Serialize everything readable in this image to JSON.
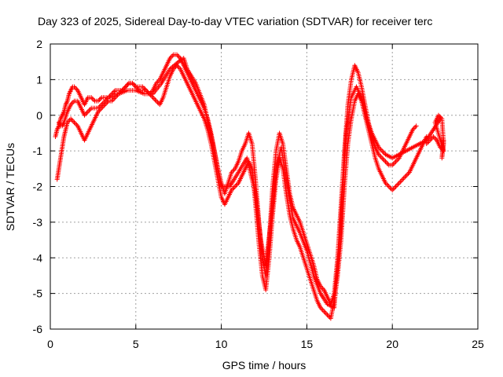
{
  "chart_data": {
    "type": "scatter",
    "title": "Day 323 of 2025, Sidereal Day-to-day VTEC variation (SDTVAR) for receiver terc",
    "xlabel": "GPS time / hours",
    "ylabel": "SDTVAR / TECUs",
    "xlim": [
      0,
      25
    ],
    "ylim": [
      -6,
      2
    ],
    "xticks": [
      0,
      5,
      10,
      15,
      20,
      25
    ],
    "yticks": [
      -6,
      -5,
      -4,
      -3,
      -2,
      -1,
      0,
      1,
      2
    ],
    "grid": true,
    "marker": "+",
    "color": "#ff0000",
    "series": [
      {
        "values": [
          [
            0.3,
            -0.6
          ],
          [
            0.4,
            -0.4
          ],
          [
            0.5,
            -0.3
          ],
          [
            0.6,
            -0.1
          ],
          [
            0.7,
            0.0
          ],
          [
            0.8,
            0.1
          ],
          [
            0.9,
            0.3
          ],
          [
            1.0,
            0.4
          ],
          [
            1.1,
            0.6
          ],
          [
            1.2,
            0.7
          ],
          [
            1.3,
            0.8
          ],
          [
            1.4,
            0.8
          ],
          [
            1.6,
            0.7
          ],
          [
            1.8,
            0.5
          ],
          [
            2.0,
            0.3
          ],
          [
            2.2,
            0.5
          ],
          [
            2.4,
            0.5
          ],
          [
            2.6,
            0.4
          ],
          [
            2.8,
            0.4
          ],
          [
            3.0,
            0.5
          ],
          [
            3.2,
            0.5
          ],
          [
            3.4,
            0.5
          ],
          [
            3.6,
            0.6
          ],
          [
            3.8,
            0.7
          ],
          [
            4.0,
            0.7
          ],
          [
            4.2,
            0.7
          ],
          [
            4.4,
            0.8
          ],
          [
            4.6,
            0.9
          ],
          [
            4.8,
            0.9
          ],
          [
            5.0,
            0.8
          ],
          [
            5.2,
            0.7
          ],
          [
            5.4,
            0.7
          ],
          [
            5.6,
            0.7
          ],
          [
            5.8,
            0.6
          ],
          [
            6.0,
            0.7
          ],
          [
            6.2,
            0.9
          ],
          [
            6.4,
            1.0
          ],
          [
            6.6,
            1.2
          ],
          [
            6.8,
            1.4
          ],
          [
            7.0,
            1.6
          ],
          [
            7.2,
            1.7
          ],
          [
            7.4,
            1.7
          ],
          [
            7.6,
            1.6
          ],
          [
            7.8,
            1.4
          ],
          [
            8.0,
            1.2
          ],
          [
            8.2,
            1.0
          ],
          [
            8.4,
            0.8
          ],
          [
            8.6,
            0.6
          ],
          [
            8.8,
            0.4
          ],
          [
            9.0,
            0.2
          ],
          [
            9.2,
            -0.1
          ],
          [
            9.4,
            -0.5
          ],
          [
            9.6,
            -1.0
          ],
          [
            9.8,
            -1.5
          ],
          [
            10.0,
            -1.9
          ],
          [
            10.2,
            -2.2
          ],
          [
            10.4,
            -1.9
          ],
          [
            10.6,
            -1.6
          ],
          [
            10.8,
            -1.5
          ],
          [
            11.0,
            -1.3
          ],
          [
            11.2,
            -1.0
          ],
          [
            11.4,
            -0.8
          ],
          [
            11.6,
            -0.5
          ],
          [
            11.8,
            -0.8
          ],
          [
            12.0,
            -1.8
          ],
          [
            12.2,
            -3.0
          ],
          [
            12.4,
            -4.0
          ],
          [
            12.6,
            -4.5
          ],
          [
            12.8,
            -3.5
          ],
          [
            13.0,
            -2.0
          ],
          [
            13.2,
            -1.0
          ],
          [
            13.4,
            -0.5
          ],
          [
            13.6,
            -0.8
          ],
          [
            13.8,
            -1.5
          ],
          [
            14.0,
            -2.2
          ],
          [
            14.2,
            -2.6
          ],
          [
            14.4,
            -2.8
          ],
          [
            14.6,
            -3.0
          ],
          [
            14.8,
            -3.3
          ],
          [
            15.0,
            -3.6
          ],
          [
            15.2,
            -3.9
          ],
          [
            15.4,
            -4.2
          ],
          [
            15.6,
            -4.6
          ],
          [
            15.8,
            -4.8
          ],
          [
            16.0,
            -4.9
          ],
          [
            16.2,
            -5.1
          ],
          [
            16.4,
            -5.3
          ],
          [
            16.6,
            -5.0
          ],
          [
            16.8,
            -4.0
          ],
          [
            17.0,
            -2.5
          ],
          [
            17.2,
            -1.0
          ],
          [
            17.4,
            0.3
          ],
          [
            17.6,
            1.0
          ],
          [
            17.8,
            1.4
          ],
          [
            18.0,
            1.2
          ],
          [
            18.2,
            0.8
          ],
          [
            18.4,
            0.3
          ],
          [
            18.6,
            -0.2
          ],
          [
            18.8,
            -0.6
          ],
          [
            19.0,
            -0.9
          ],
          [
            19.2,
            -1.1
          ],
          [
            19.4,
            -1.2
          ],
          [
            19.6,
            -1.3
          ],
          [
            19.8,
            -1.4
          ],
          [
            20.0,
            -1.4
          ],
          [
            20.2,
            -1.3
          ],
          [
            20.4,
            -1.2
          ],
          [
            20.6,
            -1.0
          ],
          [
            20.8,
            -0.8
          ],
          [
            21.0,
            -0.6
          ],
          [
            21.2,
            -0.4
          ],
          [
            21.4,
            -0.3
          ]
        ]
      },
      {
        "values": [
          [
            0.4,
            -1.8
          ],
          [
            0.5,
            -1.5
          ],
          [
            0.6,
            -1.2
          ],
          [
            0.7,
            -0.9
          ],
          [
            0.8,
            -0.6
          ],
          [
            0.9,
            -0.4
          ],
          [
            1.0,
            -0.2
          ],
          [
            1.2,
            -0.1
          ],
          [
            1.4,
            -0.2
          ],
          [
            1.6,
            -0.3
          ],
          [
            1.8,
            -0.5
          ],
          [
            2.0,
            -0.7
          ],
          [
            2.2,
            -0.5
          ],
          [
            2.4,
            -0.3
          ],
          [
            2.6,
            -0.1
          ],
          [
            2.8,
            0.1
          ],
          [
            3.0,
            0.2
          ],
          [
            3.2,
            0.3
          ],
          [
            3.4,
            0.4
          ],
          [
            3.6,
            0.4
          ],
          [
            3.8,
            0.5
          ],
          [
            4.0,
            0.6
          ],
          [
            4.2,
            0.7
          ],
          [
            4.4,
            0.8
          ],
          [
            4.6,
            0.9
          ],
          [
            4.8,
            0.9
          ],
          [
            5.0,
            0.8
          ],
          [
            5.2,
            0.8
          ],
          [
            5.4,
            0.8
          ],
          [
            5.6,
            0.7
          ],
          [
            5.8,
            0.6
          ],
          [
            6.0,
            0.5
          ],
          [
            6.2,
            0.4
          ],
          [
            6.4,
            0.3
          ],
          [
            6.6,
            0.5
          ],
          [
            6.8,
            0.8
          ],
          [
            7.0,
            1.1
          ],
          [
            7.2,
            1.3
          ],
          [
            7.4,
            1.4
          ],
          [
            7.6,
            1.3
          ],
          [
            7.8,
            1.1
          ],
          [
            8.0,
            0.9
          ],
          [
            8.2,
            0.7
          ],
          [
            8.4,
            0.5
          ],
          [
            8.6,
            0.3
          ],
          [
            8.8,
            0.1
          ],
          [
            9.0,
            -0.1
          ],
          [
            9.2,
            -0.4
          ],
          [
            9.4,
            -0.8
          ],
          [
            9.6,
            -1.3
          ],
          [
            9.8,
            -1.8
          ],
          [
            10.0,
            -2.3
          ],
          [
            10.2,
            -2.5
          ],
          [
            10.4,
            -2.3
          ],
          [
            10.6,
            -2.1
          ],
          [
            10.8,
            -2.0
          ],
          [
            11.0,
            -1.9
          ],
          [
            11.2,
            -1.7
          ],
          [
            11.4,
            -1.5
          ],
          [
            11.6,
            -1.3
          ],
          [
            11.8,
            -1.5
          ],
          [
            12.0,
            -2.5
          ],
          [
            12.2,
            -3.6
          ],
          [
            12.4,
            -4.5
          ],
          [
            12.6,
            -4.9
          ],
          [
            12.8,
            -4.0
          ],
          [
            13.0,
            -2.8
          ],
          [
            13.2,
            -1.8
          ],
          [
            13.4,
            -1.2
          ],
          [
            13.6,
            -1.5
          ],
          [
            13.8,
            -2.2
          ],
          [
            14.0,
            -2.8
          ],
          [
            14.2,
            -3.2
          ],
          [
            14.4,
            -3.5
          ],
          [
            14.6,
            -3.7
          ],
          [
            14.8,
            -4.0
          ],
          [
            15.0,
            -4.3
          ],
          [
            15.2,
            -4.6
          ],
          [
            15.4,
            -4.9
          ],
          [
            15.6,
            -5.2
          ],
          [
            15.8,
            -5.4
          ],
          [
            16.0,
            -5.5
          ],
          [
            16.2,
            -5.6
          ],
          [
            16.4,
            -5.7
          ],
          [
            16.6,
            -5.2
          ],
          [
            16.8,
            -4.5
          ],
          [
            17.0,
            -3.5
          ],
          [
            17.2,
            -2.0
          ],
          [
            17.4,
            -0.8
          ],
          [
            17.6,
            -0.1
          ],
          [
            17.8,
            0.4
          ],
          [
            18.0,
            0.6
          ],
          [
            18.2,
            0.4
          ],
          [
            18.4,
            0.0
          ],
          [
            18.6,
            -0.4
          ],
          [
            18.8,
            -0.8
          ],
          [
            19.0,
            -1.2
          ],
          [
            19.2,
            -1.5
          ],
          [
            19.4,
            -1.7
          ],
          [
            19.6,
            -1.9
          ],
          [
            19.8,
            -2.0
          ],
          [
            20.0,
            -2.1
          ],
          [
            20.2,
            -2.0
          ],
          [
            20.4,
            -1.9
          ],
          [
            20.6,
            -1.8
          ],
          [
            20.8,
            -1.7
          ],
          [
            21.0,
            -1.6
          ],
          [
            21.2,
            -1.4
          ],
          [
            21.4,
            -1.2
          ],
          [
            21.6,
            -1.0
          ],
          [
            21.8,
            -0.8
          ],
          [
            22.0,
            -0.6
          ]
        ]
      },
      {
        "values": [
          [
            0.5,
            -0.2
          ],
          [
            0.6,
            -0.3
          ],
          [
            0.7,
            -0.3
          ],
          [
            0.8,
            -0.2
          ],
          [
            1.0,
            0.1
          ],
          [
            1.2,
            0.3
          ],
          [
            1.4,
            0.4
          ],
          [
            1.6,
            0.4
          ],
          [
            1.8,
            0.2
          ],
          [
            2.0,
            0.0
          ],
          [
            2.2,
            0.1
          ],
          [
            2.4,
            0.2
          ],
          [
            2.6,
            0.2
          ],
          [
            2.8,
            0.2
          ],
          [
            3.0,
            0.3
          ],
          [
            3.2,
            0.4
          ],
          [
            3.4,
            0.5
          ],
          [
            3.6,
            0.5
          ],
          [
            3.8,
            0.6
          ],
          [
            4.0,
            0.6
          ],
          [
            4.5,
            0.7
          ],
          [
            5.0,
            0.7
          ],
          [
            5.5,
            0.6
          ],
          [
            6.0,
            0.6
          ],
          [
            6.5,
            0.9
          ],
          [
            7.0,
            1.3
          ],
          [
            7.5,
            1.5
          ],
          [
            7.8,
            1.6
          ],
          [
            8.0,
            1.3
          ],
          [
            8.5,
            0.9
          ],
          [
            9.0,
            0.3
          ],
          [
            9.5,
            -0.8
          ],
          [
            10.0,
            -2.0
          ],
          [
            10.5,
            -2.0
          ],
          [
            11.0,
            -1.6
          ],
          [
            11.5,
            -1.2
          ],
          [
            12.0,
            -2.2
          ],
          [
            12.3,
            -3.5
          ],
          [
            12.6,
            -4.2
          ],
          [
            12.9,
            -3.0
          ],
          [
            13.2,
            -1.5
          ],
          [
            13.5,
            -0.9
          ],
          [
            13.8,
            -1.8
          ],
          [
            14.2,
            -2.9
          ],
          [
            14.6,
            -3.3
          ],
          [
            15.0,
            -3.8
          ],
          [
            15.4,
            -4.5
          ],
          [
            15.8,
            -5.0
          ],
          [
            16.2,
            -5.3
          ],
          [
            16.6,
            -5.4
          ],
          [
            17.0,
            -3.0
          ],
          [
            17.3,
            -0.5
          ],
          [
            17.6,
            0.5
          ],
          [
            17.9,
            0.8
          ],
          [
            18.2,
            0.5
          ],
          [
            18.5,
            -0.1
          ],
          [
            18.8,
            -0.5
          ],
          [
            19.2,
            -0.9
          ],
          [
            19.6,
            -1.1
          ],
          [
            20.0,
            -1.2
          ],
          [
            20.4,
            -1.1
          ],
          [
            20.8,
            -1.0
          ],
          [
            21.2,
            -0.9
          ],
          [
            21.6,
            -0.8
          ],
          [
            22.0,
            -0.7
          ],
          [
            22.4,
            -0.4
          ],
          [
            22.8,
            -0.1
          ]
        ]
      },
      {
        "values": [
          [
            22.0,
            -0.8
          ],
          [
            22.2,
            -0.7
          ],
          [
            22.4,
            -0.6
          ],
          [
            22.6,
            -0.7
          ],
          [
            22.8,
            -0.9
          ],
          [
            23.0,
            -1.0
          ],
          [
            22.5,
            -0.2
          ],
          [
            22.7,
            0.0
          ],
          [
            22.9,
            -0.1
          ],
          [
            23.0,
            -0.8
          ],
          [
            22.9,
            -1.2
          ],
          [
            23.0,
            -0.7
          ]
        ]
      }
    ]
  }
}
